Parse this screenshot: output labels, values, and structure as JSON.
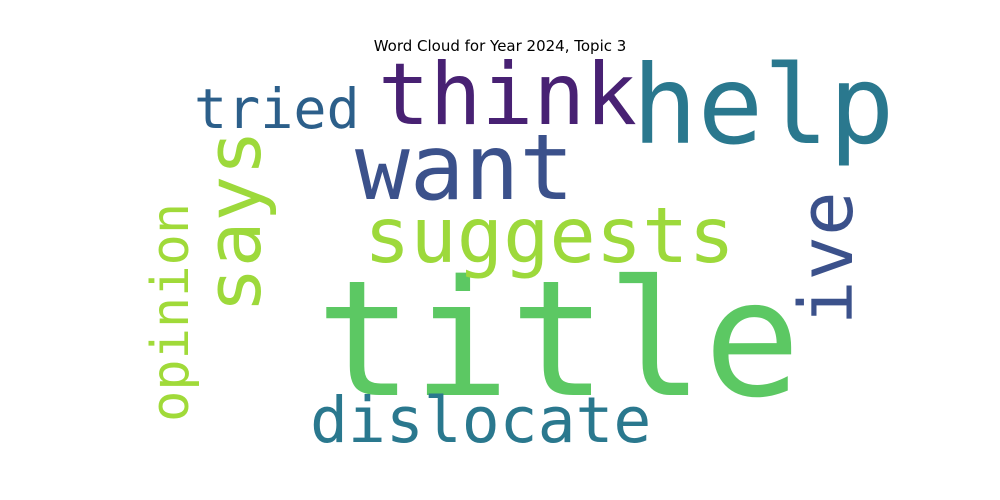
{
  "title": "Word Cloud for Year 2024, Topic 3",
  "words": [
    {
      "text": "title",
      "color": "#5cc863",
      "vertical": false
    },
    {
      "text": "help",
      "color": "#2a788e",
      "vertical": false
    },
    {
      "text": "think",
      "color": "#482173",
      "vertical": false
    },
    {
      "text": "want",
      "color": "#3b518b",
      "vertical": false
    },
    {
      "text": "suggests",
      "color": "#9dd93b",
      "vertical": false
    },
    {
      "text": "says",
      "color": "#9dd93b",
      "vertical": true
    },
    {
      "text": "ive",
      "color": "#3b518b",
      "vertical": true
    },
    {
      "text": "tried",
      "color": "#2c5f8a",
      "vertical": false
    },
    {
      "text": "opinion",
      "color": "#a0da39",
      "vertical": true
    },
    {
      "text": "dislocate",
      "color": "#2a788e",
      "vertical": false
    }
  ]
}
